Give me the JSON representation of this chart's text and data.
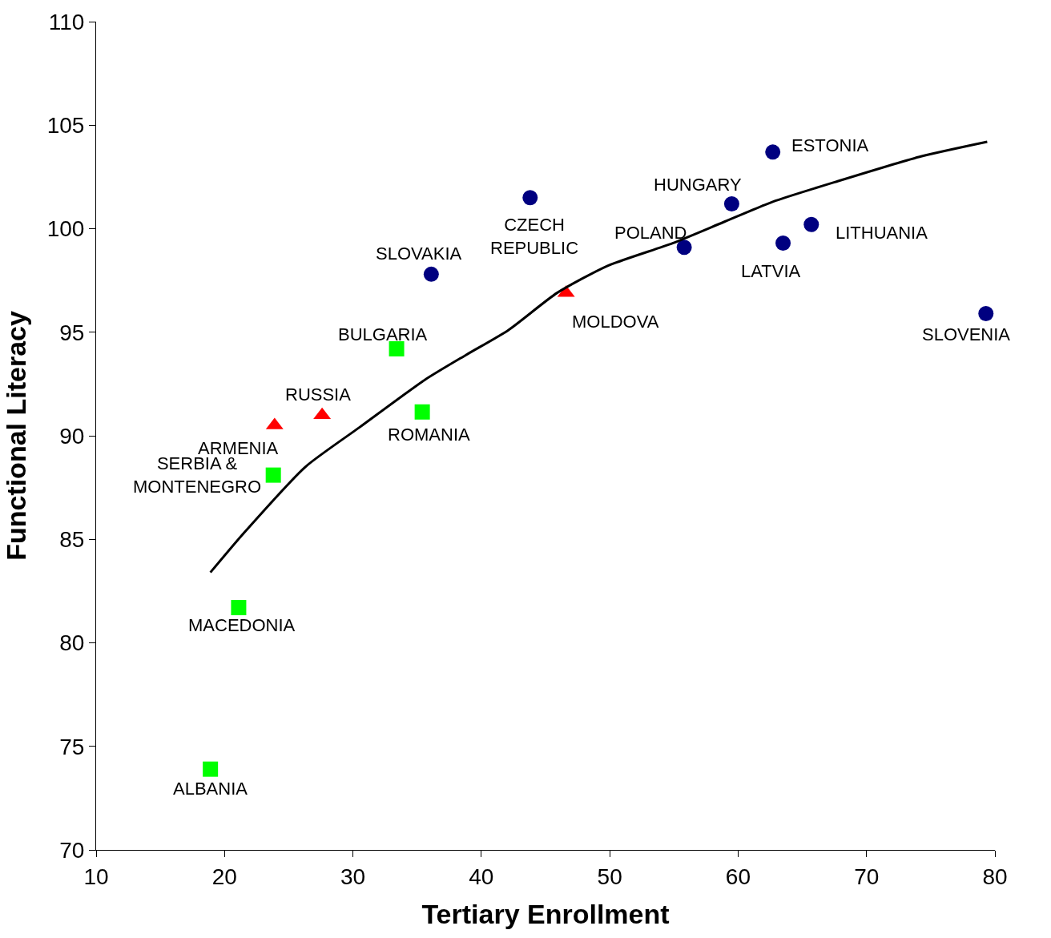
{
  "chart_data": {
    "type": "scatter",
    "xlabel": "Tertiary Enrollment",
    "ylabel": "Functional Literacy",
    "xlim": [
      10,
      80
    ],
    "xticks": [
      10,
      20,
      30,
      40,
      50,
      60,
      70,
      80
    ],
    "ylim": [
      70,
      110
    ],
    "yticks": [
      70,
      75,
      80,
      85,
      90,
      95,
      100,
      105,
      110
    ],
    "series": [
      {
        "color": "#000080",
        "marker": "circle",
        "x": [
          36.1,
          43.8,
          55.8,
          59.5,
          62.7,
          63.5,
          65.7,
          79.3
        ],
        "values": [
          97.8,
          101.5,
          99.1,
          101.2,
          103.7,
          99.3,
          100.2,
          95.9
        ]
      },
      {
        "color": "#ff0000",
        "marker": "triangle",
        "x": [
          23.9,
          27.6,
          46.6
        ],
        "values": [
          90.5,
          91.0,
          96.9
        ]
      },
      {
        "color": "#00ff00",
        "marker": "square",
        "x": [
          18.9,
          21.1,
          23.8,
          33.4,
          35.4
        ],
        "values": [
          73.9,
          81.7,
          88.1,
          94.2,
          91.15
        ]
      },
      {
        "type": "line",
        "color": "#000000",
        "marker": "none",
        "line_style": "solid",
        "x": [
          18.9,
          21.5,
          26.3,
          30.5,
          35.6,
          38.8,
          42.1,
          45.9,
          49.8,
          54.9,
          58.8,
          62.7,
          67.8,
          74.3,
          79.4
        ],
        "values": [
          83.4,
          85.3,
          88.5,
          90.4,
          92.7,
          93.9,
          95.1,
          96.9,
          98.2,
          99.3,
          100.3,
          101.3,
          102.3,
          103.5,
          104.2
        ]
      }
    ],
    "annotations": [
      {
        "text": "SLOVAKIA",
        "x": 36.1,
        "y": 97.8
      },
      {
        "text": "CZECH\nREPUBLIC",
        "x": 43.8,
        "y": 101.5
      },
      {
        "text": "POLAND",
        "x": 55.8,
        "y": 99.1
      },
      {
        "text": "HUNGARY",
        "x": 59.5,
        "y": 101.2
      },
      {
        "text": "ESTONIA",
        "x": 62.7,
        "y": 103.7
      },
      {
        "text": "LATVIA",
        "x": 63.5,
        "y": 99.3
      },
      {
        "text": "LITHUANIA",
        "x": 65.7,
        "y": 100.2
      },
      {
        "text": "SLOVENIA",
        "x": 79.3,
        "y": 95.9
      },
      {
        "text": "ARMENIA",
        "x": 23.9,
        "y": 90.5
      },
      {
        "text": "RUSSIA",
        "x": 27.6,
        "y": 91.0
      },
      {
        "text": "MOLDOVA",
        "x": 46.6,
        "y": 96.9
      },
      {
        "text": "ALBANIA",
        "x": 18.9,
        "y": 73.9
      },
      {
        "text": "MACEDONIA",
        "x": 21.1,
        "y": 81.7
      },
      {
        "text": "SERBIA &\nMONTENEGRO",
        "x": 23.8,
        "y": 88.1
      },
      {
        "text": "BULGARIA",
        "x": 33.4,
        "y": 94.2
      },
      {
        "text": "ROMANIA",
        "x": 35.4,
        "y": 91.15
      }
    ]
  }
}
